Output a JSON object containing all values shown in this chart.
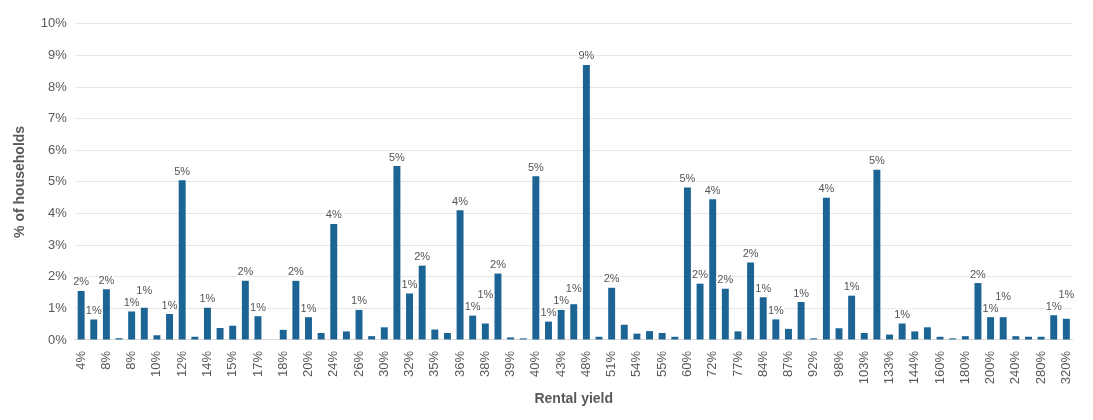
{
  "chart_data": {
    "type": "bar",
    "xlabel": "Rental yield",
    "ylabel": "% of households",
    "color": "#1c6494",
    "categories": [
      "4%",
      null,
      "8%",
      null,
      "8%",
      null,
      "10%",
      null,
      "12%",
      null,
      "14%",
      null,
      "15%",
      null,
      "17%",
      null,
      "18%",
      null,
      "20%",
      null,
      "24%",
      null,
      "26%",
      null,
      "30%",
      null,
      "32%",
      null,
      "35%",
      null,
      "36%",
      null,
      "38%",
      null,
      "39%",
      null,
      "40%",
      null,
      "43%",
      null,
      "48%",
      null,
      "51%",
      null,
      "54%",
      null,
      "55%",
      null,
      "60%",
      null,
      "72%",
      null,
      "77%",
      null,
      "84%",
      null,
      "87%",
      null,
      "92%",
      null,
      "98%",
      null,
      "103%",
      null,
      "133%",
      null,
      "144%",
      null,
      "160%",
      null,
      "180%",
      null,
      "200%",
      null,
      "240%",
      null,
      "280%",
      null,
      "320%"
    ],
    "values": [
      1.55,
      0.65,
      1.6,
      0.05,
      0.9,
      1.02,
      0.15,
      0.82,
      5.05,
      0.1,
      1.02,
      0.38,
      0.45,
      1.87,
      0.75,
      0,
      0.32,
      1.87,
      0.72,
      0.22,
      3.67,
      0.27,
      0.95,
      0.12,
      0.4,
      5.5,
      1.47,
      2.35,
      0.33,
      0.22,
      4.1,
      0.77,
      0.52,
      2.1,
      0.08,
      0.05,
      5.18,
      0.58,
      0.95,
      1.13,
      8.7,
      0.1,
      1.65,
      0.48,
      0.2,
      0.28,
      0.22,
      0.1,
      4.82,
      1.78,
      4.45,
      1.62,
      0.27,
      2.45,
      1.35,
      0.65,
      0.35,
      1.2,
      0.05,
      4.5,
      0.37,
      1.4,
      0.22,
      5.38,
      0.17,
      0.52,
      0.27,
      0.4,
      0.1,
      0.05,
      0.12,
      1.8,
      0.72,
      0.72,
      0.12,
      0.1,
      0.1,
      0.78,
      0.67
    ],
    "value_labels": [
      "2%",
      "1%",
      "2%",
      null,
      "1%",
      "1%",
      null,
      "1%",
      "5%",
      null,
      "1%",
      null,
      null,
      "2%",
      "1%",
      null,
      null,
      "2%",
      "1%",
      null,
      "4%",
      null,
      "1%",
      null,
      null,
      "5%",
      "1%",
      "2%",
      null,
      null,
      "4%",
      "1%",
      "1%",
      "2%",
      null,
      null,
      "5%",
      "1%",
      "1%",
      "1%",
      "9%",
      null,
      "2%",
      null,
      null,
      null,
      null,
      null,
      "5%",
      "2%",
      "4%",
      "2%",
      null,
      "2%",
      "1%",
      "1%",
      null,
      "1%",
      null,
      "4%",
      null,
      "1%",
      null,
      "5%",
      null,
      "1%",
      null,
      null,
      null,
      null,
      null,
      "2%",
      "1%",
      "1%",
      null,
      null,
      null,
      "1%",
      "1%"
    ],
    "ylim": [
      0,
      10
    ],
    "yticks": [
      {
        "value": 0,
        "label": "0%"
      },
      {
        "value": 1,
        "label": "1%"
      },
      {
        "value": 2,
        "label": "2%"
      },
      {
        "value": 3,
        "label": "3%"
      },
      {
        "value": 4,
        "label": "4%"
      },
      {
        "value": 5,
        "label": "5%"
      },
      {
        "value": 6,
        "label": "6%"
      },
      {
        "value": 7,
        "label": "7%"
      },
      {
        "value": 8,
        "label": "8%"
      },
      {
        "value": 9,
        "label": "9%"
      },
      {
        "value": 10,
        "label": "10%"
      }
    ],
    "grid": "y",
    "legend": false
  }
}
